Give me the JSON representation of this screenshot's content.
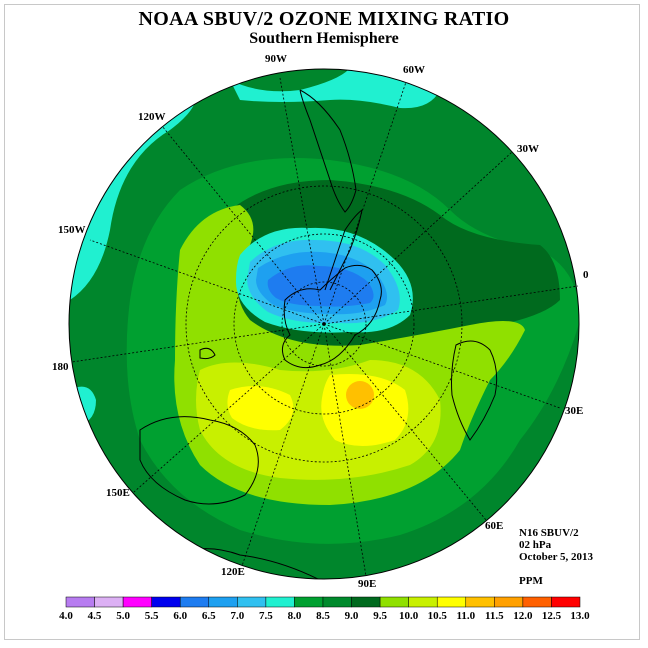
{
  "title": "NOAA SBUV/2 OZONE MIXING RATIO",
  "subtitle": "Southern Hemisphere",
  "meridian_labels": [
    "90W",
    "60W",
    "30W",
    "0",
    "30E",
    "60E",
    "90E",
    "120E",
    "150E",
    "180",
    "150W",
    "120W"
  ],
  "info": {
    "instrument": "N16 SBUV/2",
    "level": "02 hPa",
    "date": "October 5, 2013",
    "units": "PPM"
  },
  "colorbar": {
    "ticks": [
      "4.0",
      "4.5",
      "5.0",
      "5.5",
      "6.0",
      "6.5",
      "7.0",
      "7.5",
      "8.0",
      "8.5",
      "9.0",
      "9.5",
      "10.0",
      "10.5",
      "11.0",
      "11.5",
      "12.0",
      "12.5",
      "13.0"
    ],
    "colors": [
      "#b77cf0",
      "#dcb0f4",
      "#ff00ff",
      "#0000ee",
      "#1e7cf0",
      "#1ea0f0",
      "#30c0f0",
      "#20f0d0",
      "#00a030",
      "#008a2c",
      "#006a1e",
      "#90e000",
      "#c8f000",
      "#ffff00",
      "#ffc000",
      "#ffa000",
      "#ff6000",
      "#ff0000",
      "#8a5a3a"
    ]
  },
  "colors": {
    "ring": "#00862c",
    "cyan": "#20f0d0",
    "dark_green": "#006a1e",
    "mid_green": "#00a030",
    "light_green": "#90e000",
    "yellow_green": "#c8f000",
    "yellow": "#ffff00",
    "orange": "#ffc000",
    "blue_light": "#30c0f0",
    "blue_mid": "#1ea0f0",
    "blue_dark": "#1e7cf0"
  }
}
